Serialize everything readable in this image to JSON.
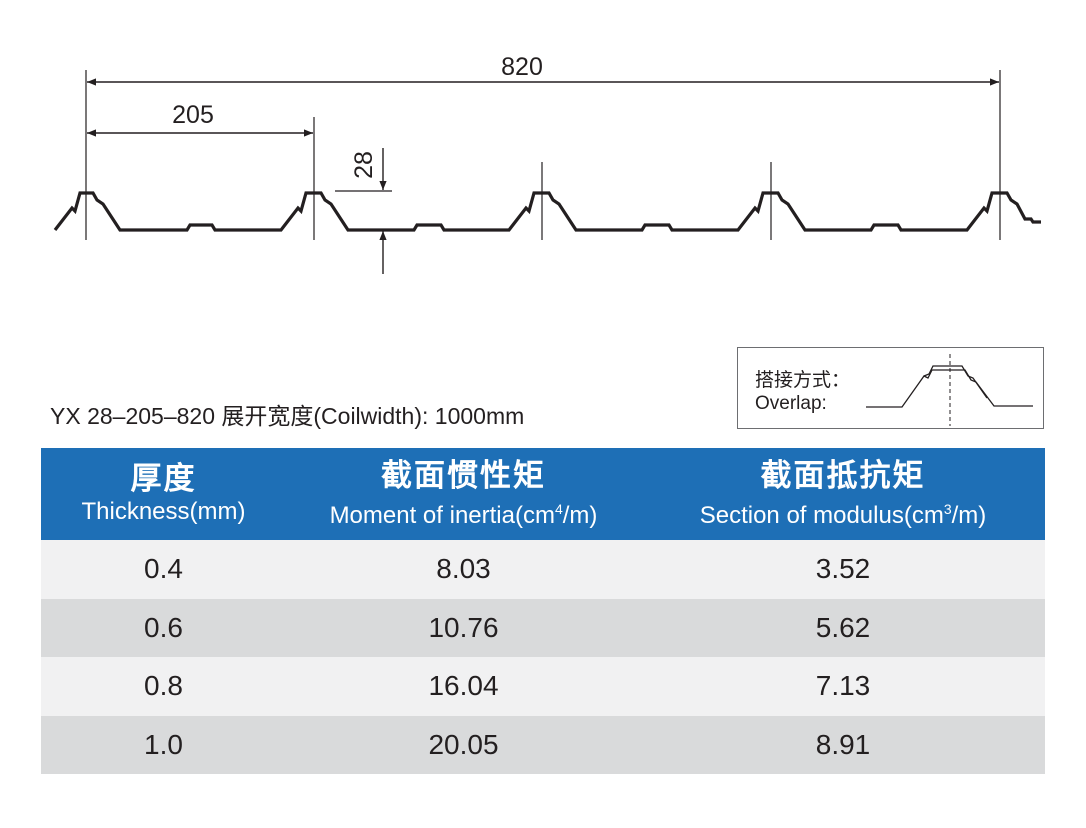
{
  "drawing": {
    "overall_width": "820",
    "pitch": "205",
    "rib_height": "28"
  },
  "spec_line": "YX 28–205–820  展开宽度(Coilwidth): 1000mm",
  "overlap": {
    "label_cn": "搭接方式：",
    "label_en": "Overlap:"
  },
  "table": {
    "headers": [
      {
        "cn": "厚度",
        "en": "Thickness(mm)",
        "sup": "",
        "en_tail": ""
      },
      {
        "cn": "截面惯性矩",
        "en": "Moment of inertia(cm",
        "sup": "4",
        "en_tail": "/m)"
      },
      {
        "cn": "截面抵抗矩",
        "en": "Section of modulus(cm",
        "sup": "3",
        "en_tail": "/m)"
      }
    ],
    "rows": [
      [
        "0.4",
        "8.03",
        "3.52"
      ],
      [
        "0.6",
        "10.76",
        "5.62"
      ],
      [
        "0.8",
        "16.04",
        "7.13"
      ],
      [
        "1.0",
        "20.05",
        "8.91"
      ]
    ]
  },
  "colors": {
    "header_bg": "#1e6fb6",
    "row_light": "#f1f1f2",
    "row_dark": "#d9dadb",
    "line": "#231f20"
  }
}
